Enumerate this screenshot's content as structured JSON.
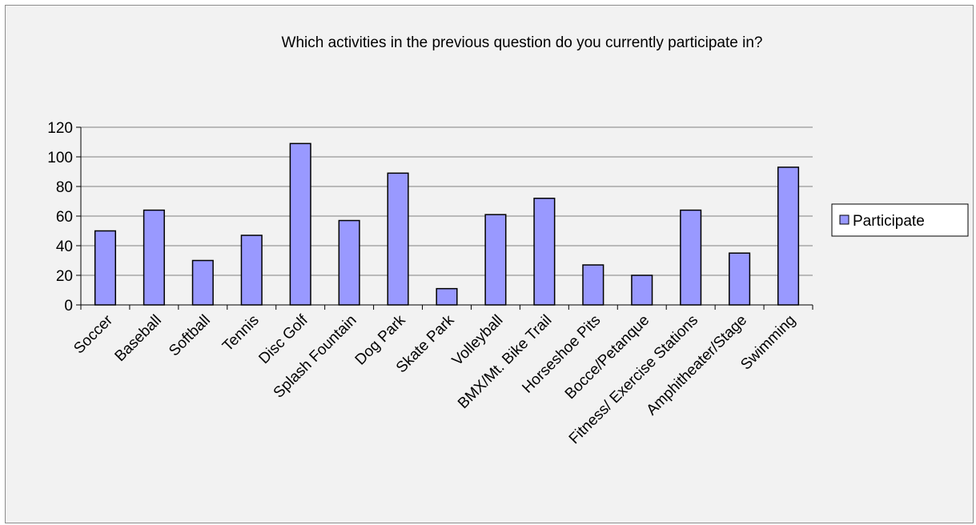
{
  "chart_data": {
    "type": "bar",
    "title": "Which activities in the previous question do you currently participate in?",
    "xlabel": "",
    "ylabel": "",
    "ylim": [
      0,
      120
    ],
    "yticks": [
      0,
      20,
      40,
      60,
      80,
      100,
      120
    ],
    "grid": true,
    "legend_position": "right",
    "categories": [
      "Soccer",
      "Baseball",
      "Softball",
      "Tennis",
      "Disc Golf",
      "Splash Fountain",
      "Dog Park",
      "Skate Park",
      "Volleyball",
      "BMX/Mt. Bike Trail",
      "Horseshoe Pits",
      "Bocce/Petanque",
      "Fitness/ Exercise Stations",
      "Amphitheater/Stage",
      "Swimming"
    ],
    "series": [
      {
        "name": "Participate",
        "color": "#9999ff",
        "values": [
          50,
          64,
          30,
          47,
          109,
          57,
          89,
          11,
          61,
          72,
          27,
          20,
          64,
          35,
          93
        ]
      }
    ]
  }
}
